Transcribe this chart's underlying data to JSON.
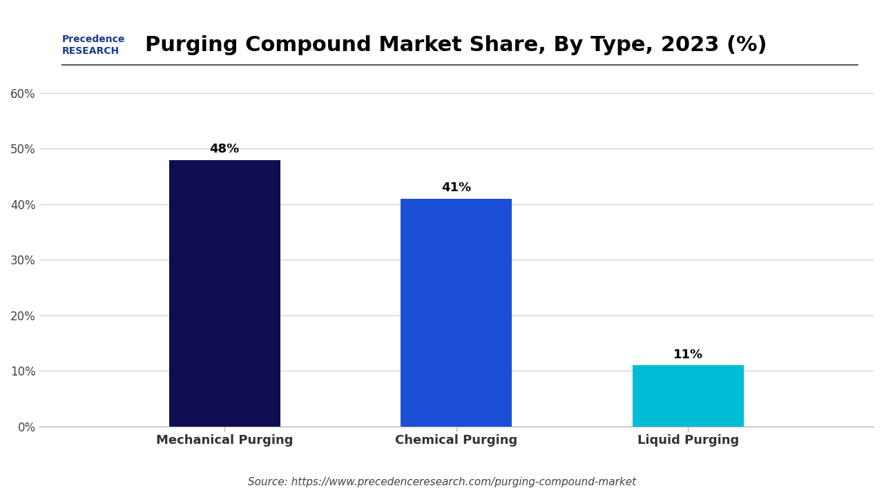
{
  "title": "Purging Compound Market Share, By Type, 2023 (%)",
  "categories": [
    "Mechanical Purging",
    "Chemical Purging",
    "Liquid Purging"
  ],
  "values": [
    48,
    41,
    11
  ],
  "labels": [
    "48%",
    "41%",
    "11%"
  ],
  "bar_colors": [
    "#0d0d4f",
    "#1a4fd6",
    "#00bcd4"
  ],
  "ylim": [
    0,
    65
  ],
  "yticks": [
    0,
    10,
    20,
    30,
    40,
    50,
    60
  ],
  "ytick_labels": [
    "0%",
    "10%",
    "20%",
    "30%",
    "40%",
    "50%",
    "60%"
  ],
  "background_color": "#ffffff",
  "source_text": "Source: https://www.precedenceresearch.com/purging-compound-market",
  "title_fontsize": 22,
  "label_fontsize": 13,
  "tick_fontsize": 12,
  "source_fontsize": 11,
  "bar_width": 0.35,
  "grid_color": "#cccccc",
  "top_line_color": "#333333"
}
